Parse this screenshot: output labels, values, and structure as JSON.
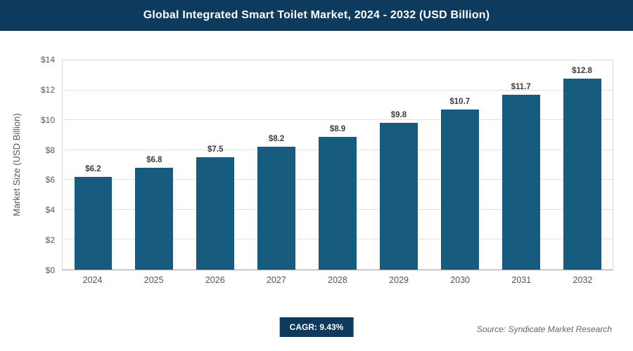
{
  "header": {
    "title": "Global Integrated Smart Toilet Market, 2024 - 2032 (USD Billion)"
  },
  "chart_data": {
    "type": "bar",
    "title": "Global Integrated Smart Toilet Market, 2024 - 2032 (USD Billion)",
    "categories": [
      "2024",
      "2025",
      "2026",
      "2027",
      "2028",
      "2029",
      "2030",
      "2031",
      "2032"
    ],
    "values": [
      6.2,
      6.8,
      7.5,
      8.2,
      8.9,
      9.8,
      10.7,
      11.7,
      12.8
    ],
    "bar_labels": [
      "$6.2",
      "$6.8",
      "$7.5",
      "$8.2",
      "$8.9",
      "$9.8",
      "$10.7",
      "$11.7",
      "$12.8"
    ],
    "xlabel": "",
    "ylabel": "Market Size (USD Billion)",
    "ylim": [
      0,
      14
    ],
    "ytick_values": [
      0,
      2,
      4,
      6,
      8,
      10,
      12,
      14
    ],
    "ytick_labels": [
      "$0",
      "$2",
      "$4",
      "$6",
      "$8",
      "$10",
      "$12",
      "$14"
    ],
    "grid": true,
    "legend": "none",
    "bar_color": "#175b7e"
  },
  "footer": {
    "cagr_label": "CAGR: 9.43%",
    "source": "Source: Syndicate Market Research"
  },
  "colors": {
    "header_bg": "#0e3a5e",
    "badge_bg": "#0e3a5e",
    "bar": "#175b7e",
    "gridline": "#e2e2e2",
    "axis_text": "#595959"
  }
}
